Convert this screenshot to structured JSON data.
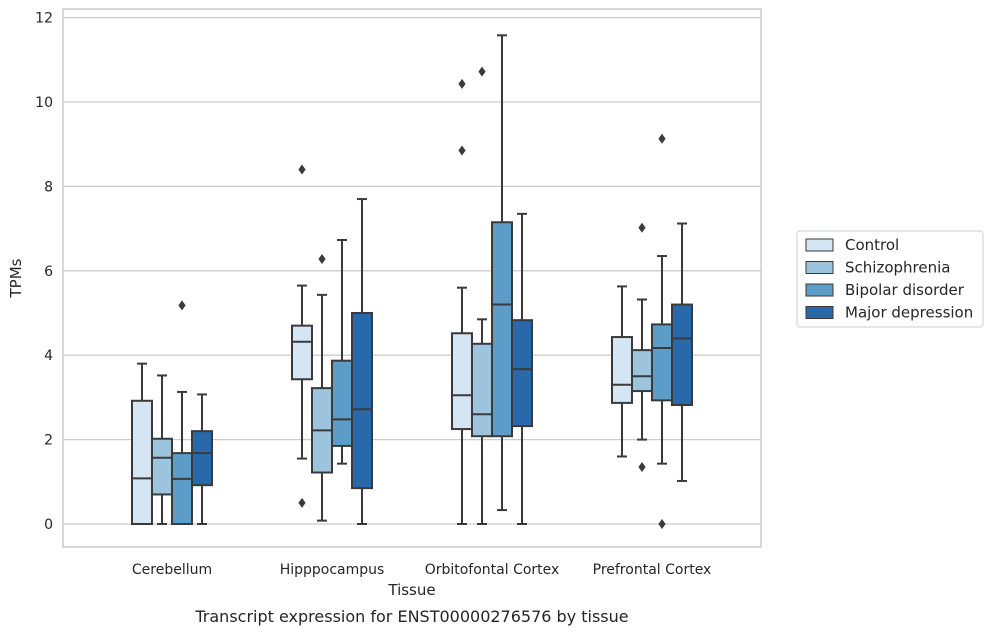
{
  "caption": "Transcript expression for ENST00000276576 by tissue",
  "chart_data": {
    "type": "box",
    "xlabel": "Tissue",
    "ylabel": "TPMs",
    "ylim": [
      -0.55,
      12.2
    ],
    "yticks": [
      "0",
      "2",
      "4",
      "6",
      "8",
      "10",
      "12"
    ],
    "grid": "horizontal",
    "legend_position": "right",
    "categories": [
      "Cerebellum",
      "Hipppocampus",
      "Orbitofontal Cortex",
      "Prefrontal Cortex"
    ],
    "series": [
      {
        "name": "Control",
        "color": "#d6e5f3",
        "boxes": [
          {
            "whislo": 0,
            "q1": 0,
            "med": 1.08,
            "q3": 2.92,
            "whishi": 3.8,
            "fliers": []
          },
          {
            "whislo": 1.55,
            "q1": 3.43,
            "med": 4.32,
            "q3": 4.7,
            "whishi": 5.65,
            "fliers": [
              0.5,
              8.4
            ]
          },
          {
            "whislo": 0,
            "q1": 2.25,
            "med": 3.05,
            "q3": 4.52,
            "whishi": 5.6,
            "fliers": [
              8.85,
              10.43
            ]
          },
          {
            "whislo": 1.6,
            "q1": 2.87,
            "med": 3.3,
            "q3": 4.43,
            "whishi": 5.63,
            "fliers": []
          }
        ]
      },
      {
        "name": "Schizophrenia",
        "color": "#9dc4dd",
        "boxes": [
          {
            "whislo": 0,
            "q1": 0.7,
            "med": 1.57,
            "q3": 2.02,
            "whishi": 3.52,
            "fliers": []
          },
          {
            "whislo": 0.08,
            "q1": 1.22,
            "med": 2.22,
            "q3": 3.22,
            "whishi": 5.43,
            "fliers": [
              6.28
            ]
          },
          {
            "whislo": 0,
            "q1": 2.08,
            "med": 2.6,
            "q3": 4.27,
            "whishi": 4.85,
            "fliers": [
              10.72
            ]
          },
          {
            "whislo": 2.0,
            "q1": 3.15,
            "med": 3.5,
            "q3": 4.12,
            "whishi": 5.32,
            "fliers": [
              1.35,
              7.02
            ]
          }
        ]
      },
      {
        "name": "Bipolar disorder",
        "color": "#5b9cc8",
        "boxes": [
          {
            "whislo": 0,
            "q1": 0,
            "med": 1.07,
            "q3": 1.68,
            "whishi": 3.13,
            "fliers": [
              5.18
            ]
          },
          {
            "whislo": 1.43,
            "q1": 1.85,
            "med": 2.48,
            "q3": 3.87,
            "whishi": 6.73,
            "fliers": []
          },
          {
            "whislo": 0.33,
            "q1": 2.08,
            "med": 5.2,
            "q3": 7.15,
            "whishi": 11.58,
            "fliers": []
          },
          {
            "whislo": 1.43,
            "q1": 2.93,
            "med": 4.17,
            "q3": 4.73,
            "whishi": 6.35,
            "fliers": [
              0,
              9.13
            ]
          }
        ]
      },
      {
        "name": "Major depression",
        "color": "#2a69a9",
        "boxes": [
          {
            "whislo": 0,
            "q1": 0.92,
            "med": 1.68,
            "q3": 2.2,
            "whishi": 3.07,
            "fliers": []
          },
          {
            "whislo": 0,
            "q1": 0.85,
            "med": 2.72,
            "q3": 5.0,
            "whishi": 7.7,
            "fliers": []
          },
          {
            "whislo": 0,
            "q1": 2.32,
            "med": 3.67,
            "q3": 4.83,
            "whishi": 7.35,
            "fliers": []
          },
          {
            "whislo": 1.02,
            "q1": 2.82,
            "med": 4.4,
            "q3": 5.2,
            "whishi": 7.12,
            "fliers": []
          }
        ]
      }
    ]
  }
}
